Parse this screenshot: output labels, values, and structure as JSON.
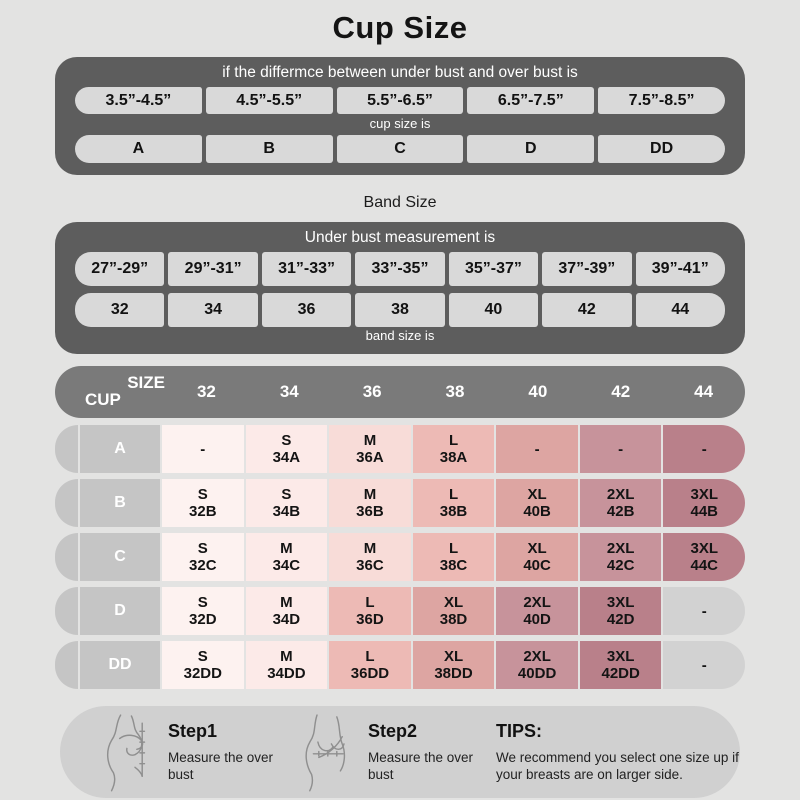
{
  "page": {
    "title": "Cup Size"
  },
  "colors": {
    "page_bg": "#e3e3e2",
    "panel_dark": "#5d5d5d",
    "cell_gray": "#d9d9d9",
    "header_bar": "#7a7a7a",
    "label_gray": "#c5c5c5",
    "tips_bg": "#d0d0d0",
    "tones": [
      "#fdf2f0",
      "#fceae8",
      "#f8dcd8",
      "#edbab5",
      "#dda5a2",
      "#c7939b",
      "#b9808a",
      "#d2d2d2"
    ]
  },
  "cup_table": {
    "heading": "if the differmce between under bust and over bust is",
    "ranges": [
      "3.5”-4.5”",
      "4.5”-5.5”",
      "5.5”-6.5”",
      "6.5”-7.5”",
      "7.5”-8.5”"
    ],
    "mid_label": "cup size is",
    "cups": [
      "A",
      "B",
      "C",
      "D",
      "DD"
    ]
  },
  "band_table": {
    "title": "Band Size",
    "heading": "Under bust measurement is",
    "ranges": [
      "27”-29”",
      "29”-31”",
      "31”-33”",
      "33”-35”",
      "35”-37”",
      "37”-39”",
      "39”-41”"
    ],
    "sizes": [
      "32",
      "34",
      "36",
      "38",
      "40",
      "42",
      "44"
    ],
    "footer": "band size is"
  },
  "matrix": {
    "corner_top": "SIZE",
    "corner_bottom": "CUP",
    "columns": [
      "32",
      "34",
      "36",
      "38",
      "40",
      "42",
      "44"
    ],
    "rows": [
      {
        "cup": "A",
        "cells": [
          {
            "size": "-",
            "code": "",
            "tone": 0
          },
          {
            "size": "S",
            "code": "34A",
            "tone": 1
          },
          {
            "size": "M",
            "code": "36A",
            "tone": 2
          },
          {
            "size": "L",
            "code": "38A",
            "tone": 3
          },
          {
            "size": "-",
            "code": "",
            "tone": 4
          },
          {
            "size": "-",
            "code": "",
            "tone": 5
          },
          {
            "size": "-",
            "code": "",
            "tone": 6
          }
        ]
      },
      {
        "cup": "B",
        "cells": [
          {
            "size": "S",
            "code": "32B",
            "tone": 0
          },
          {
            "size": "S",
            "code": "34B",
            "tone": 1
          },
          {
            "size": "M",
            "code": "36B",
            "tone": 2
          },
          {
            "size": "L",
            "code": "38B",
            "tone": 3
          },
          {
            "size": "XL",
            "code": "40B",
            "tone": 4
          },
          {
            "size": "2XL",
            "code": "42B",
            "tone": 5
          },
          {
            "size": "3XL",
            "code": "44B",
            "tone": 6
          }
        ]
      },
      {
        "cup": "C",
        "cells": [
          {
            "size": "S",
            "code": "32C",
            "tone": 0
          },
          {
            "size": "M",
            "code": "34C",
            "tone": 1
          },
          {
            "size": "M",
            "code": "36C",
            "tone": 2
          },
          {
            "size": "L",
            "code": "38C",
            "tone": 3
          },
          {
            "size": "XL",
            "code": "40C",
            "tone": 4
          },
          {
            "size": "2XL",
            "code": "42C",
            "tone": 5
          },
          {
            "size": "3XL",
            "code": "44C",
            "tone": 6
          }
        ]
      },
      {
        "cup": "D",
        "cells": [
          {
            "size": "S",
            "code": "32D",
            "tone": 0
          },
          {
            "size": "M",
            "code": "34D",
            "tone": 1
          },
          {
            "size": "L",
            "code": "36D",
            "tone": 3
          },
          {
            "size": "XL",
            "code": "38D",
            "tone": 4
          },
          {
            "size": "2XL",
            "code": "40D",
            "tone": 5
          },
          {
            "size": "3XL",
            "code": "42D",
            "tone": 6
          },
          {
            "size": "-",
            "code": "",
            "tone": 7
          }
        ]
      },
      {
        "cup": "DD",
        "cells": [
          {
            "size": "S",
            "code": "32DD",
            "tone": 0
          },
          {
            "size": "M",
            "code": "34DD",
            "tone": 1
          },
          {
            "size": "L",
            "code": "36DD",
            "tone": 3
          },
          {
            "size": "XL",
            "code": "38DD",
            "tone": 4
          },
          {
            "size": "2XL",
            "code": "40DD",
            "tone": 5
          },
          {
            "size": "3XL",
            "code": "42DD",
            "tone": 6
          },
          {
            "size": "-",
            "code": "",
            "tone": 7
          }
        ]
      }
    ]
  },
  "guide": {
    "step1": {
      "title": "Step1",
      "text": "Measure the over bust"
    },
    "step2": {
      "title": "Step2",
      "text": "Measure the over bust"
    },
    "tips": {
      "title": "TIPS:",
      "text": "We recommend you select one size up if your breasts are on larger side."
    }
  }
}
